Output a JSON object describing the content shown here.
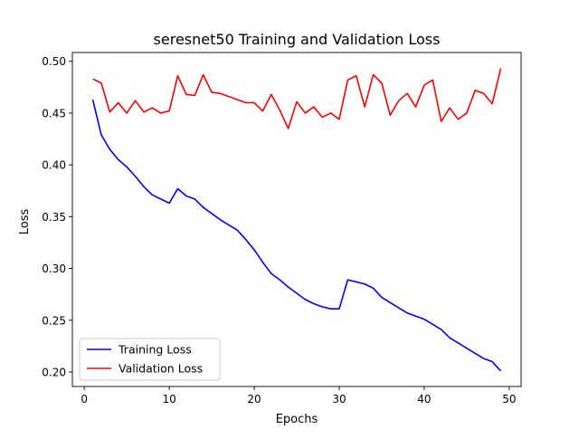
{
  "chart_data": {
    "type": "line",
    "title": "seresnet50 Training and Validation Loss",
    "xlabel": "Epochs",
    "ylabel": "Loss",
    "xlim": [
      -1.4,
      51.4
    ],
    "ylim": [
      0.186,
      0.5085
    ],
    "xticks": [
      0,
      10,
      20,
      30,
      40,
      50
    ],
    "xtick_labels": [
      "0",
      "10",
      "20",
      "30",
      "40",
      "50"
    ],
    "yticks": [
      0.2,
      0.25,
      0.3,
      0.35,
      0.4,
      0.45,
      0.5
    ],
    "ytick_labels": [
      "0.20",
      "0.25",
      "0.30",
      "0.35",
      "0.40",
      "0.45",
      "0.50"
    ],
    "grid": false,
    "legend_position": "lower-left",
    "x": [
      1,
      2,
      3,
      4,
      5,
      6,
      7,
      8,
      9,
      10,
      11,
      12,
      13,
      14,
      15,
      16,
      17,
      18,
      19,
      20,
      21,
      22,
      23,
      24,
      25,
      26,
      27,
      28,
      29,
      30,
      31,
      32,
      33,
      34,
      35,
      36,
      37,
      38,
      39,
      40,
      41,
      42,
      43,
      44,
      45,
      46,
      47,
      48,
      49
    ],
    "series": [
      {
        "name": "Training Loss",
        "color": "#0000ff",
        "values": [
          0.463,
          0.429,
          0.415,
          0.405,
          0.398,
          0.389,
          0.379,
          0.371,
          0.367,
          0.363,
          0.377,
          0.37,
          0.367,
          0.359,
          0.353,
          0.347,
          0.342,
          0.337,
          0.328,
          0.318,
          0.306,
          0.295,
          0.289,
          0.282,
          0.276,
          0.27,
          0.266,
          0.263,
          0.261,
          0.261,
          0.289,
          0.287,
          0.285,
          0.281,
          0.272,
          0.267,
          0.262,
          0.257,
          0.254,
          0.251,
          0.246,
          0.241,
          0.233,
          0.228,
          0.223,
          0.218,
          0.213,
          0.21,
          0.201
        ]
      },
      {
        "name": "Validation Loss",
        "color": "#ff0000",
        "values": [
          0.483,
          0.479,
          0.451,
          0.46,
          0.45,
          0.462,
          0.451,
          0.455,
          0.45,
          0.452,
          0.486,
          0.468,
          0.467,
          0.487,
          0.47,
          0.469,
          0.466,
          0.463,
          0.46,
          0.46,
          0.452,
          0.468,
          0.453,
          0.435,
          0.461,
          0.45,
          0.456,
          0.446,
          0.45,
          0.444,
          0.482,
          0.486,
          0.456,
          0.487,
          0.479,
          0.448,
          0.462,
          0.469,
          0.456,
          0.477,
          0.482,
          0.442,
          0.455,
          0.444,
          0.45,
          0.472,
          0.469,
          0.459,
          0.493
        ]
      }
    ]
  }
}
